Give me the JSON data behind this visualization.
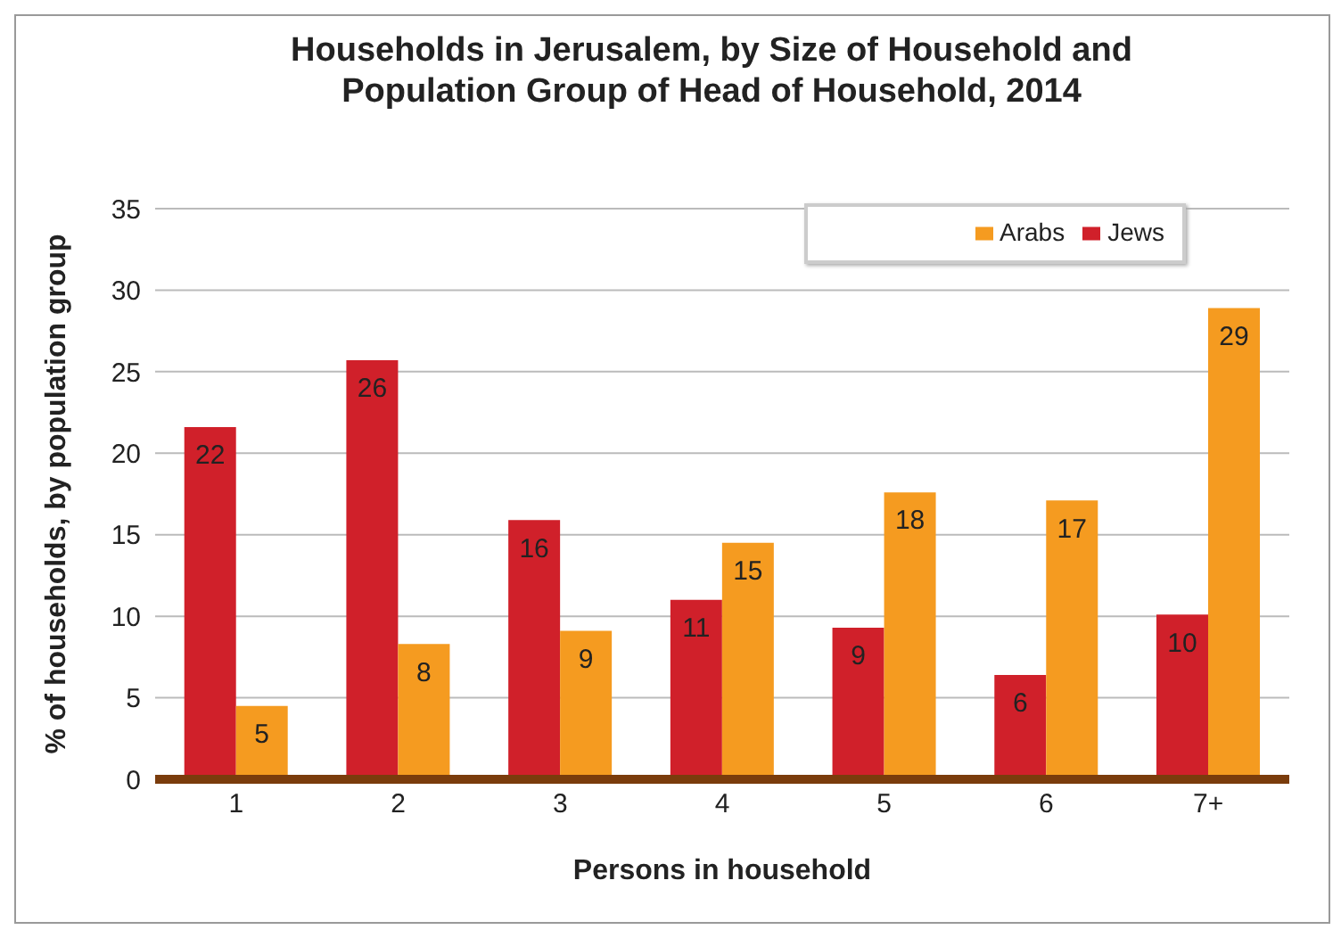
{
  "chart_data": {
    "type": "bar",
    "title": "Households in Jerusalem, by Size of Household and Population Group of Head of Household, 2014",
    "xlabel": "Persons in household",
    "ylabel": "% of households, by population group",
    "categories": [
      "1",
      "2",
      "3",
      "4",
      "5",
      "6",
      "7+"
    ],
    "series": [
      {
        "name": "Jews",
        "color": "#d0202a",
        "values": [
          21.6,
          25.7,
          15.9,
          11.0,
          9.3,
          6.4,
          10.1
        ],
        "value_labels": [
          "22",
          "26",
          "16",
          "11",
          "9",
          "6",
          "10"
        ]
      },
      {
        "name": "Arabs",
        "color": "#f59b20",
        "values": [
          4.5,
          8.3,
          9.1,
          14.5,
          17.6,
          17.1,
          28.9
        ],
        "value_labels": [
          "5",
          "8",
          "9",
          "15",
          "18",
          "17",
          "29"
        ]
      }
    ],
    "ylim": [
      0,
      35
    ],
    "yticks": [
      0,
      5,
      10,
      15,
      20,
      25,
      30,
      35
    ],
    "grid": "y",
    "legend": "top right"
  }
}
